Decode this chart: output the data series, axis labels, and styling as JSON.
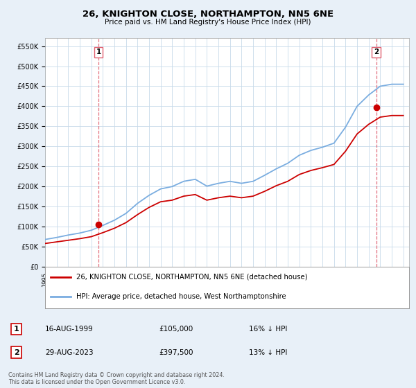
{
  "title": "26, KNIGHTON CLOSE, NORTHAMPTON, NN5 6NE",
  "subtitle": "Price paid vs. HM Land Registry's House Price Index (HPI)",
  "ylabel_ticks": [
    "£0",
    "£50K",
    "£100K",
    "£150K",
    "£200K",
    "£250K",
    "£300K",
    "£350K",
    "£400K",
    "£450K",
    "£500K",
    "£550K"
  ],
  "ytick_values": [
    0,
    50000,
    100000,
    150000,
    200000,
    250000,
    300000,
    350000,
    400000,
    450000,
    500000,
    550000
  ],
  "ylim": [
    0,
    570000
  ],
  "xlim_start": 1995.3,
  "xlim_end": 2026.5,
  "grid_color": "#c8daea",
  "background_color": "#e8f0f8",
  "plot_bg_color": "#ffffff",
  "hpi_color": "#7aade0",
  "price_color": "#cc0000",
  "dashed_line_color": "#e06070",
  "transaction1": {
    "date_num": 1999.62,
    "price": 105000,
    "label": "1"
  },
  "transaction2": {
    "date_num": 2023.65,
    "price": 397500,
    "label": "2"
  },
  "legend_items": [
    {
      "label": "26, KNIGHTON CLOSE, NORTHAMPTON, NN5 6NE (detached house)",
      "color": "#cc0000"
    },
    {
      "label": "HPI: Average price, detached house, West Northamptonshire",
      "color": "#7aade0"
    }
  ],
  "table_rows": [
    {
      "num": "1",
      "date": "16-AUG-1999",
      "price": "£105,000",
      "hpi": "16% ↓ HPI"
    },
    {
      "num": "2",
      "date": "29-AUG-2023",
      "price": "£397,500",
      "hpi": "13% ↓ HPI"
    }
  ],
  "footer": "Contains HM Land Registry data © Crown copyright and database right 2024.\nThis data is licensed under the Open Government Licence v3.0.",
  "hpi_data_years": [
    1995,
    1996,
    1997,
    1998,
    1999,
    2000,
    2001,
    2002,
    2003,
    2004,
    2005,
    2006,
    2007,
    2008,
    2009,
    2010,
    2011,
    2012,
    2013,
    2014,
    2015,
    2016,
    2017,
    2018,
    2019,
    2020,
    2021,
    2022,
    2023,
    2024,
    2025,
    2026
  ],
  "hpi_data_values": [
    68000,
    73000,
    79000,
    84000,
    91000,
    103000,
    116000,
    133000,
    158000,
    178000,
    194000,
    200000,
    213000,
    218000,
    201000,
    208000,
    213000,
    208000,
    213000,
    228000,
    244000,
    258000,
    278000,
    290000,
    298000,
    308000,
    348000,
    400000,
    428000,
    450000,
    455000,
    455000
  ],
  "price_data_years": [
    1995,
    1996,
    1997,
    1998,
    1999,
    2000,
    2001,
    2002,
    2003,
    2004,
    2005,
    2006,
    2007,
    2008,
    2009,
    2010,
    2011,
    2012,
    2013,
    2014,
    2015,
    2016,
    2017,
    2018,
    2019,
    2020,
    2021,
    2022,
    2023,
    2024,
    2025,
    2026
  ],
  "price_data_values": [
    58000,
    62000,
    66000,
    70000,
    75000,
    85000,
    96000,
    110000,
    130000,
    148000,
    162000,
    166000,
    176000,
    180000,
    166000,
    172000,
    176000,
    172000,
    176000,
    188000,
    202000,
    213000,
    230000,
    240000,
    247000,
    255000,
    288000,
    331000,
    355000,
    373000,
    377000,
    377000
  ]
}
